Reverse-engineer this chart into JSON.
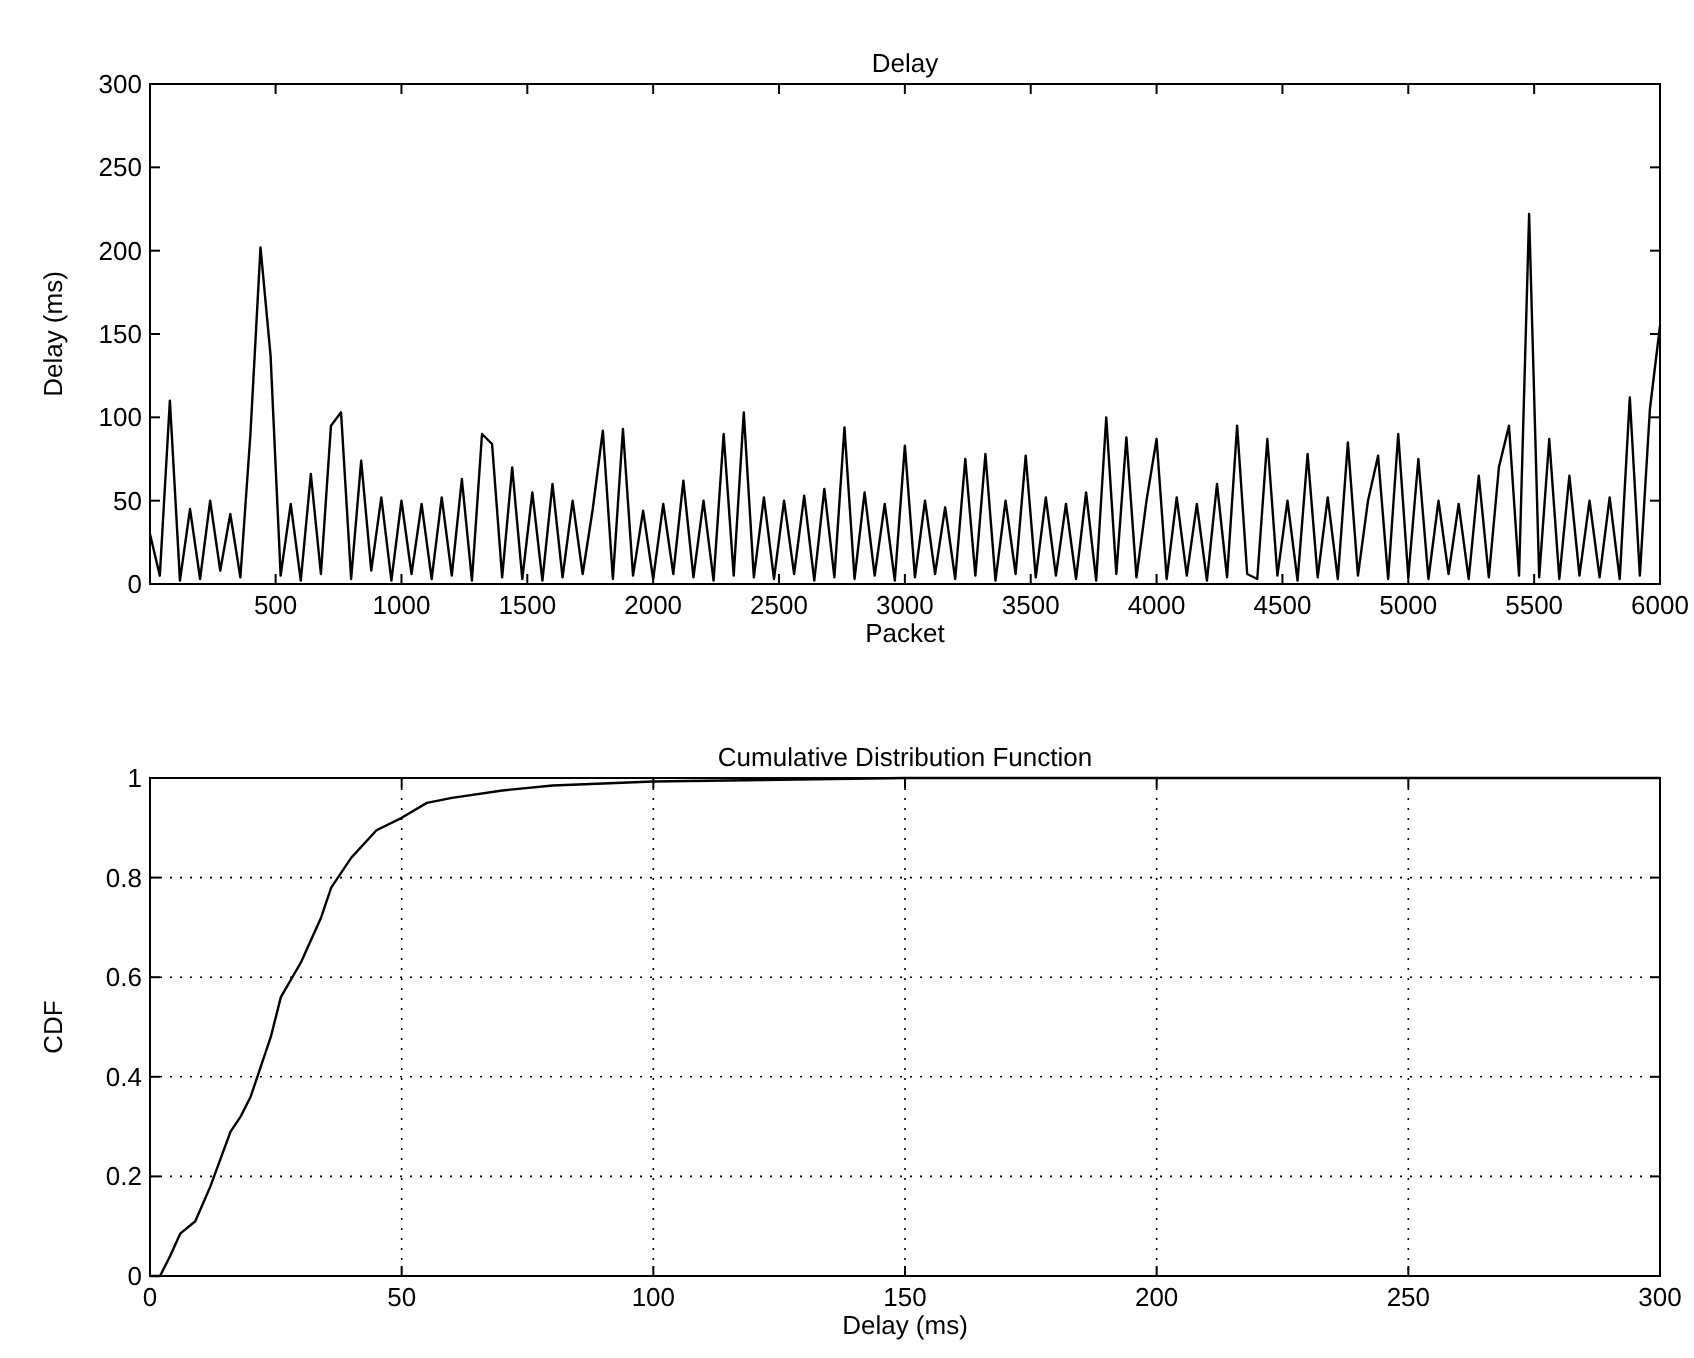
{
  "chart_data": [
    {
      "type": "line",
      "title": "Delay",
      "xlabel": "Packet",
      "ylabel": "Delay (ms)",
      "xlim": [
        1,
        6000
      ],
      "ylim": [
        0,
        300
      ],
      "xticks": [
        500,
        1000,
        1500,
        2000,
        2500,
        3000,
        3500,
        4000,
        4500,
        5000,
        5500,
        6000
      ],
      "yticks": [
        0,
        50,
        100,
        150,
        200,
        250,
        300
      ],
      "grid": false,
      "series": [
        {
          "color": "#000000",
          "x": [
            1,
            40,
            80,
            120,
            160,
            200,
            240,
            280,
            320,
            360,
            400,
            440,
            480,
            520,
            560,
            600,
            640,
            680,
            720,
            760,
            800,
            840,
            880,
            920,
            960,
            1000,
            1040,
            1080,
            1120,
            1160,
            1200,
            1240,
            1280,
            1320,
            1360,
            1400,
            1440,
            1480,
            1520,
            1560,
            1600,
            1640,
            1680,
            1720,
            1760,
            1800,
            1840,
            1880,
            1920,
            1960,
            2000,
            2040,
            2080,
            2120,
            2160,
            2200,
            2240,
            2280,
            2320,
            2360,
            2400,
            2440,
            2480,
            2520,
            2560,
            2600,
            2640,
            2680,
            2720,
            2760,
            2800,
            2840,
            2880,
            2920,
            2960,
            3000,
            3040,
            3080,
            3120,
            3160,
            3200,
            3240,
            3280,
            3320,
            3360,
            3400,
            3440,
            3480,
            3520,
            3560,
            3600,
            3640,
            3680,
            3720,
            3760,
            3800,
            3840,
            3880,
            3920,
            3960,
            4000,
            4040,
            4080,
            4120,
            4160,
            4200,
            4240,
            4280,
            4320,
            4360,
            4400,
            4440,
            4480,
            4520,
            4560,
            4600,
            4640,
            4680,
            4720,
            4760,
            4800,
            4840,
            4880,
            4920,
            4960,
            5000,
            5040,
            5080,
            5120,
            5160,
            5200,
            5240,
            5280,
            5320,
            5360,
            5400,
            5440,
            5480,
            5520,
            5560,
            5600,
            5640,
            5680,
            5720,
            5760,
            5800,
            5840,
            5880,
            5920,
            5960,
            6000
          ],
          "values": [
            30,
            5,
            110,
            2,
            45,
            3,
            50,
            8,
            42,
            4,
            90,
            202,
            137,
            5,
            48,
            2,
            66,
            6,
            95,
            103,
            3,
            74,
            8,
            52,
            2,
            50,
            6,
            48,
            3,
            52,
            5,
            63,
            2,
            90,
            84,
            4,
            70,
            3,
            55,
            2,
            60,
            4,
            50,
            6,
            45,
            92,
            3,
            93,
            5,
            44,
            3,
            48,
            6,
            62,
            4,
            50,
            2,
            90,
            5,
            103,
            4,
            52,
            3,
            50,
            6,
            53,
            2,
            57,
            4,
            94,
            3,
            55,
            5,
            48,
            2,
            83,
            4,
            50,
            6,
            46,
            3,
            75,
            5,
            78,
            2,
            50,
            6,
            77,
            4,
            52,
            5,
            48,
            3,
            55,
            2,
            100,
            6,
            88,
            4,
            50,
            87,
            3,
            52,
            5,
            48,
            2,
            60,
            4,
            95,
            6,
            3,
            87,
            5,
            50,
            2,
            78,
            4,
            52,
            3,
            85,
            5,
            50,
            77,
            3,
            90,
            4,
            75,
            3,
            50,
            6,
            48,
            3,
            65,
            4,
            70,
            95,
            5,
            222,
            4,
            87,
            3,
            65,
            5,
            50,
            4,
            52,
            3,
            112,
            5,
            105,
            155
          ]
        }
      ]
    },
    {
      "type": "line",
      "title": "Cumulative Distribution Function",
      "xlabel": "Delay (ms)",
      "ylabel": "CDF",
      "xlim": [
        0,
        300
      ],
      "ylim": [
        0,
        1
      ],
      "xticks": [
        0,
        50,
        100,
        150,
        200,
        250,
        300
      ],
      "yticks": [
        0,
        0.2,
        0.4,
        0.6,
        0.8,
        1
      ],
      "grid": true,
      "line_style": "solid",
      "series": [
        {
          "color": "#000000",
          "x": [
            0,
            2,
            4,
            6,
            9,
            12,
            16,
            18,
            20,
            24,
            26,
            30,
            34,
            36,
            40,
            45,
            50,
            55,
            60,
            70,
            80,
            100,
            150,
            300
          ],
          "values": [
            0,
            0,
            0.04,
            0.085,
            0.11,
            0.18,
            0.29,
            0.32,
            0.36,
            0.48,
            0.56,
            0.63,
            0.72,
            0.78,
            0.84,
            0.895,
            0.92,
            0.95,
            0.96,
            0.975,
            0.985,
            0.993,
            1,
            1
          ]
        }
      ]
    }
  ]
}
